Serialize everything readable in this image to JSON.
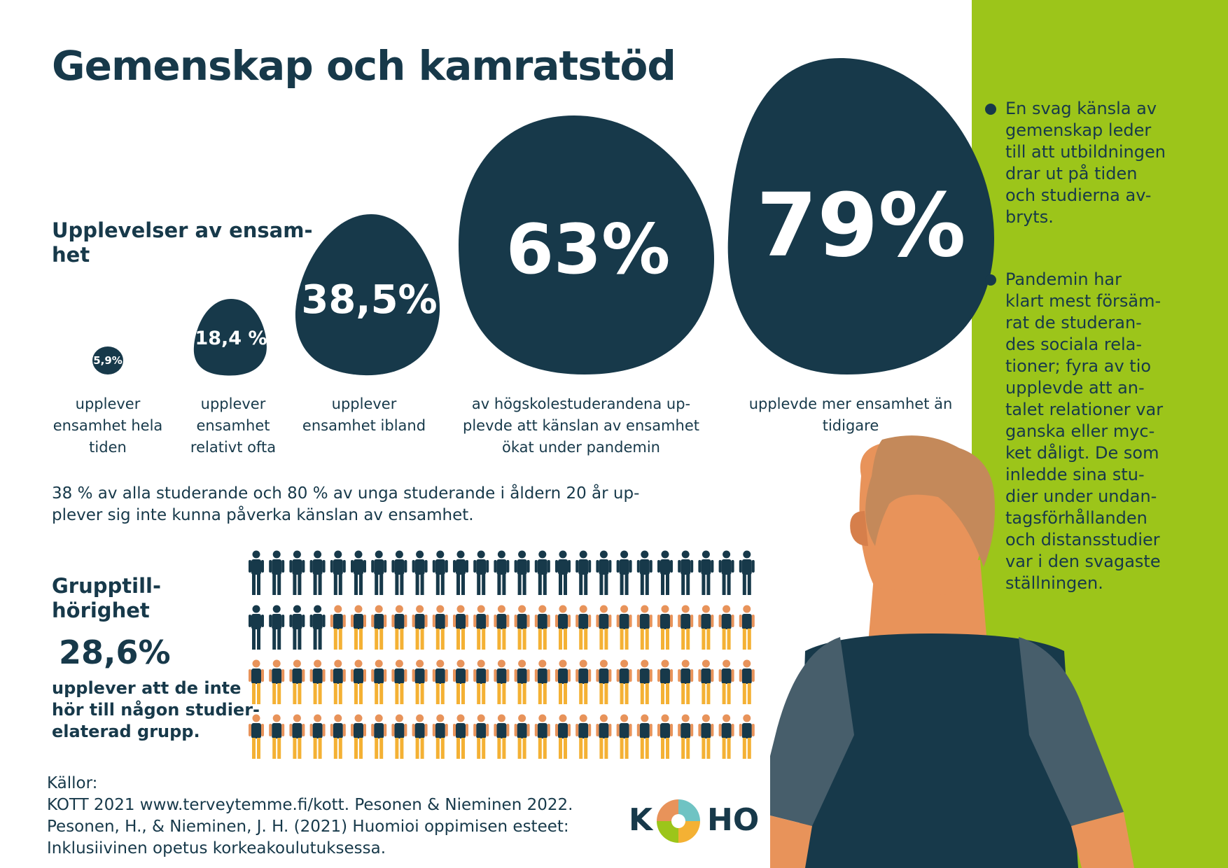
{
  "title": "Gemenskap och kamratstöd",
  "loneliness": {
    "heading_line1": "Upplevelser av ensam-",
    "heading_line2": "het",
    "stats": [
      {
        "value": "5,9%",
        "label": [
          "upplever",
          "ensamhet hela",
          "tiden"
        ]
      },
      {
        "value": "18,4 %",
        "label": [
          "upplever",
          "ensamhet",
          "relativt ofta"
        ]
      },
      {
        "value": "38,5%",
        "label": [
          "upplever",
          "ensamhet ibland"
        ]
      },
      {
        "value": "63%",
        "label": [
          "av högskolestuderandena up-",
          "plevde att känslan av ensamhet",
          "ökat under pandemin"
        ]
      },
      {
        "value": "79%",
        "label": [
          "upplevde mer ensamhet än",
          "tidigare"
        ]
      }
    ]
  },
  "paragraph": [
    "38 % av alla studerande och 80 % av unga studerande i åldern 20 år up-",
    "plever sig inte kunna påverka känslan av ensamhet."
  ],
  "group": {
    "heading_line1": "Grupptill-",
    "heading_line2": "hörighet",
    "value": "28,6%",
    "description": [
      "upplever att de inte",
      "hör till någon studier-",
      "elaterad grupp."
    ],
    "pictogram": {
      "total": 100,
      "highlighted": 28.6,
      "columns": 25,
      "rows": 4
    }
  },
  "sources": {
    "heading": "Källor:",
    "lines": [
      "KOTT 2021 www.terveytemme.fi/kott. Pesonen & Nieminen 2022.",
      "Pesonen, H., & Nieminen, J. H. (2021) Huomioi oppimisen esteet:",
      "Inklusiivinen opetus korkeakoulutuksessa."
    ]
  },
  "bullets": [
    [
      "En svag känsla av",
      "gemenskap leder",
      "till att utbildningen",
      "drar ut på tiden",
      "och studierna av-",
      "bryts."
    ],
    [
      "Pandemin har",
      "klart mest försäm-",
      "rat de studeran-",
      "des sociala rela-",
      "tioner; fyra av tio",
      "upplevde att an-",
      "talet relationer var",
      "ganska eller myc-",
      "ket dåligt. De som",
      "inledde sina stu-",
      "dier under undan-",
      "tagsförhållanden",
      "och distansstudier",
      "var i den svagaste",
      "ställningen."
    ]
  ],
  "logo": {
    "left": "K",
    "right": "HO"
  },
  "colors": {
    "navy": "#17394a",
    "green": "#9cc51a",
    "orange": "#f4b134",
    "skin": "#e8935a",
    "hair": "#c4895a",
    "sleeve": "#475e6b"
  }
}
